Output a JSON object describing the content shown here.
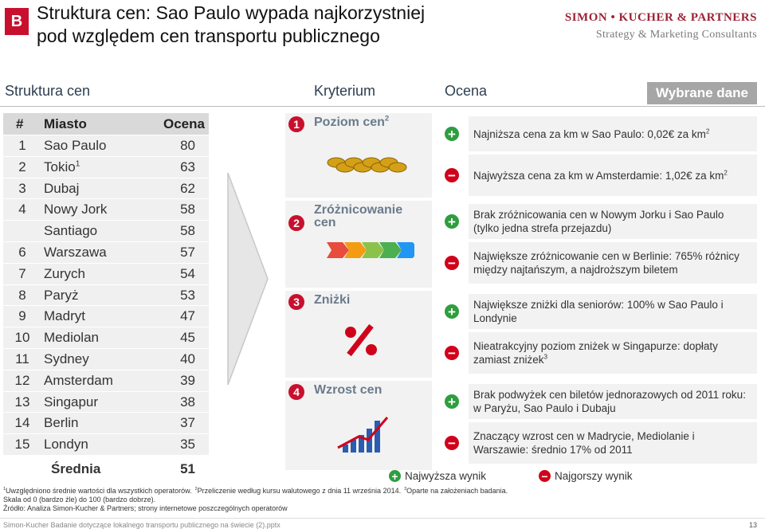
{
  "header": {
    "badge": "B",
    "title_lines": [
      "Struktura cen: Sao Paulo wypada najkorzystniej",
      "pod względem cen transportu publicznego"
    ],
    "logo": {
      "name": "SIMON • KUCHER & PARTNERS",
      "tagline": "Strategy & Marketing Consultants"
    }
  },
  "sections": {
    "ranking": "Struktura cen",
    "criterion": "Kryterium",
    "rating": "Ocena",
    "data": "Wybrane dane"
  },
  "table": {
    "columns": [
      "#",
      "Miasto",
      "Ocena"
    ],
    "rows": [
      {
        "rank": 1,
        "city": "Sao Paulo",
        "score": 80
      },
      {
        "rank": 2,
        "city": "Tokio",
        "sup": "1",
        "score": 63
      },
      {
        "rank": 3,
        "city": "Dubaj",
        "score": 62
      },
      {
        "rank": 4,
        "city": "Nowy Jork",
        "score": 58
      },
      {
        "city": "Santiago",
        "score": 58
      },
      {
        "rank": 6,
        "city": "Warszawa",
        "score": 57
      },
      {
        "rank": 7,
        "city": "Zurych",
        "score": 54
      },
      {
        "rank": 8,
        "city": "Paryż",
        "score": 53
      },
      {
        "rank": 9,
        "city": "Madryt",
        "score": 47
      },
      {
        "rank": 10,
        "city": "Mediolan",
        "score": 45
      },
      {
        "rank": 11,
        "city": "Sydney",
        "score": 40
      },
      {
        "rank": 12,
        "city": "Amsterdam",
        "score": 39
      },
      {
        "rank": 13,
        "city": "Singapur",
        "score": 38
      },
      {
        "rank": 14,
        "city": "Berlin",
        "score": 37
      },
      {
        "rank": 15,
        "city": "Londyn",
        "score": 35
      }
    ],
    "average": {
      "label": "Średnia",
      "score": 51
    }
  },
  "criteria": [
    {
      "number": "1",
      "label": "Poziom cen",
      "sup": "2",
      "items": [
        {
          "sign": "+",
          "text": "Najniższa cena za km w Sao Paulo: 0,02€ za km",
          "sup": "2"
        },
        {
          "sign": "−",
          "text": "Najwyższa cena za km w Amsterdamie: 1,02€ za km",
          "sup": "2"
        }
      ]
    },
    {
      "number": "2",
      "label": "Zróżnicowanie cen",
      "items": [
        {
          "sign": "+",
          "text": "Brak zróżnicowania cen w Nowym Jorku i Sao Paulo (tylko jedna strefa przejazdu)"
        },
        {
          "sign": "−",
          "text": "Największe zróżnicowanie cen w Berlinie: 765% różnicy między najtańszym, a najdroższym biletem"
        }
      ]
    },
    {
      "number": "3",
      "label": "Zniżki",
      "items": [
        {
          "sign": "+",
          "text": "Największe zniżki dla seniorów: 100% w Sao Paulo i Londynie"
        },
        {
          "sign": "−",
          "text": "Nieatrakcyjny poziom zniżek w Singapurze: dopłaty zamiast zniżek",
          "sup": "3"
        }
      ]
    },
    {
      "number": "4",
      "label": "Wzrost cen",
      "items": [
        {
          "sign": "+",
          "text": "Brak podwyżek cen biletów jednorazowych od 2011 roku: w Paryżu, Sao Paulo i Dubaju"
        },
        {
          "sign": "−",
          "text": "Znaczący wzrost cen w Madrycie, Mediolanie i Warszawie: średnio 17% od 2011"
        }
      ]
    }
  ],
  "legend": [
    {
      "sign": "+",
      "text": "Najwyższa wynik"
    },
    {
      "sign": "−",
      "text": "Najgorszy wynik"
    }
  ],
  "footnotes": [
    {
      "sup": "1",
      "text": "Uwzględniono średnie wartości dla wszystkich operatorów."
    },
    {
      "sup": "2",
      "text": "Przeliczenie według kursu walutowego z dnia 11 września 2014."
    },
    {
      "sup": "3",
      "text": "Oparte na założeniach badania."
    }
  ],
  "scale_note": "Skala od 0 (bardzo źle) do 100 (bardzo dobrze).",
  "source": "Źródło: Analiza Simon-Kucher & Partners; strony internetowe poszczególnych operatorów",
  "footer": {
    "file": "Simon-Kucher Badanie dotyczące lokalnego transportu publicznego na świecie (2).pptx",
    "page": "13"
  }
}
